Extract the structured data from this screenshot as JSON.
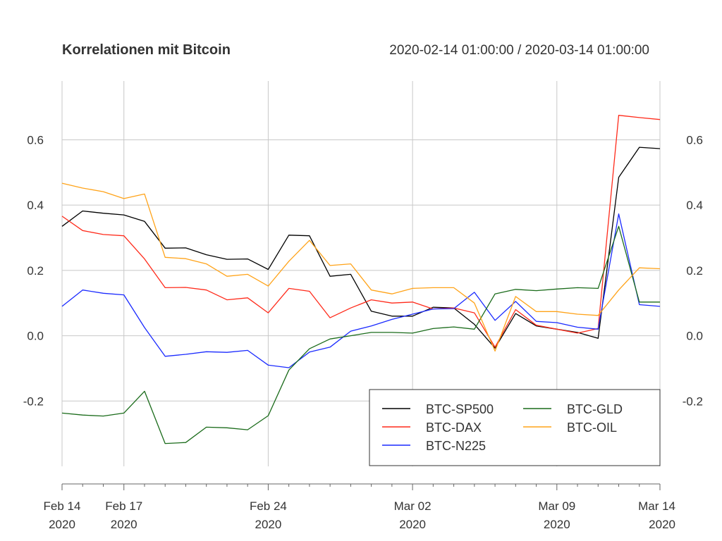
{
  "chart_data": {
    "type": "line",
    "title": "Korrelationen mit Bitcoin",
    "subtitle": "2020-02-14 01:00:00 / 2020-03-14 01:00:00",
    "x": [
      "2020-02-14",
      "2020-02-15",
      "2020-02-16",
      "2020-02-17",
      "2020-02-18",
      "2020-02-19",
      "2020-02-20",
      "2020-02-21",
      "2020-02-22",
      "2020-02-23",
      "2020-02-24",
      "2020-02-25",
      "2020-02-26",
      "2020-02-27",
      "2020-02-28",
      "2020-02-29",
      "2020-03-01",
      "2020-03-02",
      "2020-03-03",
      "2020-03-04",
      "2020-03-05",
      "2020-03-06",
      "2020-03-07",
      "2020-03-08",
      "2020-03-09",
      "2020-03-10",
      "2020-03-11",
      "2020-03-12",
      "2020-03-13",
      "2020-03-14"
    ],
    "series": [
      {
        "name": "BTC-SP500",
        "color": "#000000",
        "values": [
          0.335,
          0.382,
          0.375,
          0.37,
          0.35,
          0.268,
          0.269,
          0.248,
          0.234,
          0.235,
          0.203,
          0.308,
          0.306,
          0.182,
          0.188,
          0.075,
          0.06,
          0.06,
          0.087,
          0.085,
          0.035,
          -0.038,
          0.068,
          0.03,
          0.02,
          0.01,
          -0.008,
          0.485,
          0.577,
          0.573
        ]
      },
      {
        "name": "BTC-DAX",
        "color": "#ff2a1a",
        "values": [
          0.366,
          0.322,
          0.31,
          0.306,
          0.235,
          0.147,
          0.148,
          0.14,
          0.11,
          0.116,
          0.07,
          0.145,
          0.136,
          0.055,
          0.085,
          0.11,
          0.1,
          0.103,
          0.082,
          0.085,
          0.07,
          -0.035,
          0.08,
          0.032,
          0.02,
          0.008,
          0.022,
          0.675,
          0.668,
          0.662
        ]
      },
      {
        "name": "BTC-N225",
        "color": "#1a2aff",
        "values": [
          0.09,
          0.14,
          0.13,
          0.125,
          0.025,
          -0.063,
          -0.057,
          -0.049,
          -0.051,
          -0.045,
          -0.09,
          -0.098,
          -0.05,
          -0.035,
          0.014,
          0.03,
          0.05,
          0.066,
          0.082,
          0.083,
          0.133,
          0.047,
          0.105,
          0.044,
          0.04,
          0.026,
          0.02,
          0.373,
          0.095,
          0.09
        ]
      },
      {
        "name": "BTC-GLD",
        "color": "#1a6b1a",
        "values": [
          -0.237,
          -0.243,
          -0.246,
          -0.237,
          -0.17,
          -0.33,
          -0.327,
          -0.28,
          -0.282,
          -0.288,
          -0.245,
          -0.105,
          -0.04,
          -0.01,
          0.0,
          0.01,
          0.01,
          0.008,
          0.022,
          0.027,
          0.02,
          0.128,
          0.142,
          0.138,
          0.143,
          0.147,
          0.145,
          0.335,
          0.103,
          0.103
        ]
      },
      {
        "name": "BTC-OIL",
        "color": "#ffa319",
        "values": [
          0.467,
          0.452,
          0.441,
          0.42,
          0.434,
          0.24,
          0.236,
          0.22,
          0.182,
          0.188,
          0.152,
          0.228,
          0.292,
          0.215,
          0.22,
          0.14,
          0.128,
          0.145,
          0.147,
          0.147,
          0.1,
          -0.047,
          0.12,
          0.074,
          0.074,
          0.066,
          0.062,
          0.14,
          0.208,
          0.205
        ]
      }
    ],
    "ylim": [
      -0.4,
      0.78
    ],
    "yticks": [
      {
        "value": -0.2,
        "label": "-0.2"
      },
      {
        "value": 0.0,
        "label": "0.0"
      },
      {
        "value": 0.2,
        "label": "0.2"
      },
      {
        "value": 0.4,
        "label": "0.4"
      },
      {
        "value": 0.6,
        "label": "0.6"
      }
    ],
    "xticks": [
      {
        "index": 0,
        "line1": "Feb 14",
        "line2": "2020"
      },
      {
        "index": 3,
        "line1": "Feb 17",
        "line2": "2020"
      },
      {
        "index": 10,
        "line1": "Feb 24",
        "line2": "2020"
      },
      {
        "index": 17,
        "line1": "Mar 02",
        "line2": "2020"
      },
      {
        "index": 24,
        "line1": "Mar 09",
        "line2": "2020"
      },
      {
        "index": 29,
        "line1": "Mar 14",
        "line2": "2020"
      }
    ],
    "grid": true,
    "legend_position": "bottom-right",
    "colors": {
      "grid": "#c8c8c8",
      "axis": "#666666",
      "legend_border": "#333333"
    }
  }
}
